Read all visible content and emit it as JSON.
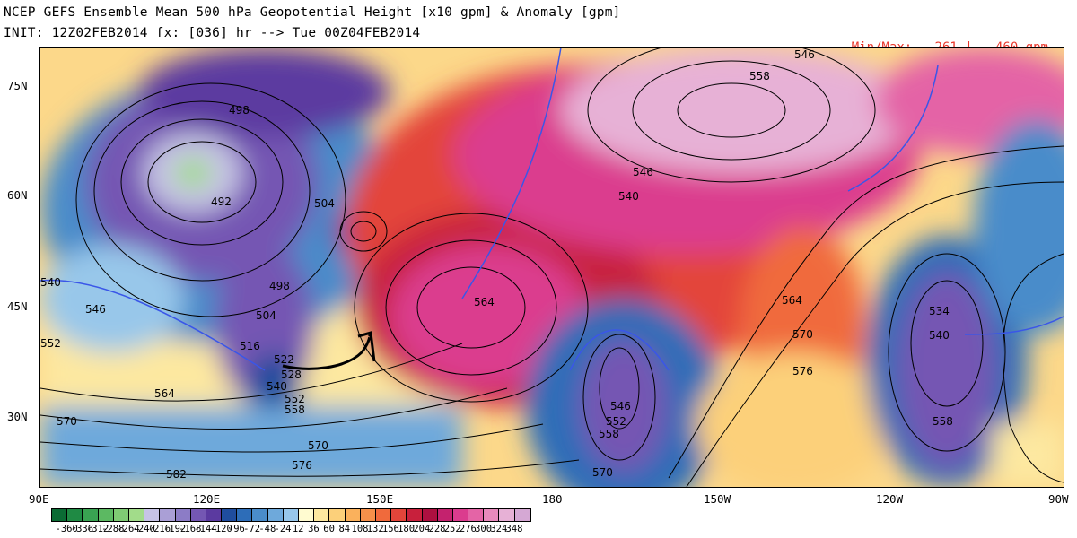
{
  "header": {
    "line1": "NCEP GEFS Ensemble Mean 500 hPa Geopotential Height [x10 gpm] & Anomaly [gpm]",
    "line2": "INIT: 12Z02FEB2014 fx: [036] hr --> Tue 00Z04FEB2014",
    "minmax_label": "Min/Max:",
    "min_value": "-261",
    "separator": "|",
    "max_value": "460 gpm"
  },
  "axes": {
    "lat_labels": [
      "75N",
      "60N",
      "45N",
      "30N"
    ],
    "lon_labels": [
      "90E",
      "120E",
      "150E",
      "180",
      "150W",
      "120W",
      "90W"
    ]
  },
  "height_labels": [
    "546",
    "558",
    "498",
    "492",
    "504",
    "546",
    "540",
    "540",
    "546",
    "552",
    "498",
    "504",
    "516",
    "522",
    "528",
    "540",
    "552",
    "558",
    "564",
    "570",
    "570",
    "576",
    "582",
    "564",
    "546",
    "552",
    "558",
    "570",
    "564",
    "570",
    "576",
    "534",
    "540",
    "558"
  ],
  "colorbar": {
    "labels": [
      "-360",
      "-336",
      "-312",
      "-288",
      "-264",
      "-240",
      "-216",
      "-192",
      "-168",
      "-144",
      "-120",
      "-96",
      "-72",
      "-48",
      "-24",
      "12",
      "36",
      "60",
      "84",
      "108",
      "132",
      "156",
      "180",
      "204",
      "228",
      "252",
      "276",
      "300",
      "324",
      "348"
    ],
    "colors": [
      "#0b6b34",
      "#1f8a44",
      "#39a352",
      "#5cb962",
      "#7fcb74",
      "#a2dc8a",
      "#c7c4e6",
      "#aa9fd6",
      "#8c7cc6",
      "#7457b3",
      "#5b3aa0",
      "#1f4d9e",
      "#2d6db8",
      "#4a8cca",
      "#6ea9db",
      "#98c7ea",
      "#fffbd0",
      "#fde8a0",
      "#fcd07a",
      "#fab15c",
      "#f6904a",
      "#f06a3c",
      "#e3453a",
      "#c8203c",
      "#ad1040",
      "#c4226e",
      "#db3c8e",
      "#e464a6",
      "#e88abc",
      "#e7b1d6",
      "#d5a8d4"
    ]
  },
  "colors": {
    "minmax_text": "#e8362a",
    "contour_line": "#000000",
    "anomaly_zero_line": "#3a56e8"
  }
}
